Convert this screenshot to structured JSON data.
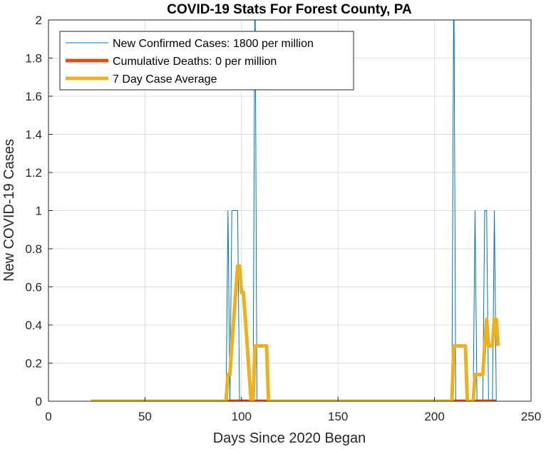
{
  "chart_data": {
    "type": "line",
    "title": "COVID-19 Stats For Forest County, PA",
    "xlabel": "Days Since 2020 Began",
    "ylabel": "New COVID-19 Cases",
    "xlim": [
      0,
      250
    ],
    "ylim": [
      0,
      2
    ],
    "x_ticks": [
      0,
      50,
      100,
      150,
      200,
      250
    ],
    "y_ticks": [
      0,
      0.2,
      0.4,
      0.6,
      0.8,
      1,
      1.2,
      1.4,
      1.6,
      1.8,
      2
    ],
    "x_tick_labels": [
      "0",
      "50",
      "100",
      "150",
      "200",
      "250"
    ],
    "y_tick_labels": [
      "0",
      "0.2",
      "0.4",
      "0.6",
      "0.8",
      "1",
      "1.2",
      "1.4",
      "1.6",
      "1.8",
      "2"
    ],
    "grid": true,
    "legend_position": "top-left",
    "series": [
      {
        "name": "New Confirmed Cases: 1800 per million",
        "color": "#0072BD",
        "style": "thin",
        "points": [
          [
            22,
            0
          ],
          [
            92,
            0
          ],
          [
            93,
            1
          ],
          [
            94,
            0
          ],
          [
            95,
            1
          ],
          [
            96,
            1
          ],
          [
            97,
            1
          ],
          [
            98,
            1
          ],
          [
            99,
            0
          ],
          [
            106,
            0
          ],
          [
            107,
            2.3
          ],
          [
            108,
            0
          ],
          [
            209,
            0
          ],
          [
            210,
            2.3
          ],
          [
            211,
            0
          ],
          [
            220,
            0
          ],
          [
            221,
            1
          ],
          [
            222,
            0
          ],
          [
            225,
            0
          ],
          [
            226,
            1
          ],
          [
            227,
            1
          ],
          [
            228,
            0
          ],
          [
            230,
            0
          ],
          [
            231,
            1
          ],
          [
            232,
            0
          ]
        ]
      },
      {
        "name": "Cumulative Deaths: 0 per million",
        "color": "#D95319",
        "style": "thick",
        "points": [
          [
            22,
            0
          ],
          [
            232,
            0
          ]
        ]
      },
      {
        "name": "7 Day Case Average",
        "color": "#EDB120",
        "style": "thick",
        "points": [
          [
            22,
            0
          ],
          [
            92,
            0
          ],
          [
            93,
            0.14
          ],
          [
            94,
            0.14
          ],
          [
            95,
            0.29
          ],
          [
            96,
            0.43
          ],
          [
            97,
            0.57
          ],
          [
            98,
            0.71
          ],
          [
            99,
            0.71
          ],
          [
            100,
            0.57
          ],
          [
            101,
            0.57
          ],
          [
            102,
            0.43
          ],
          [
            103,
            0.29
          ],
          [
            104,
            0.14
          ],
          [
            105,
            0
          ],
          [
            106,
            0
          ],
          [
            107,
            0.29
          ],
          [
            108,
            0.29
          ],
          [
            109,
            0.29
          ],
          [
            110,
            0.29
          ],
          [
            111,
            0.29
          ],
          [
            112,
            0.29
          ],
          [
            113,
            0.29
          ],
          [
            114,
            0
          ],
          [
            209,
            0
          ],
          [
            210,
            0.29
          ],
          [
            211,
            0.29
          ],
          [
            212,
            0.29
          ],
          [
            213,
            0.29
          ],
          [
            214,
            0.29
          ],
          [
            215,
            0.29
          ],
          [
            216,
            0.29
          ],
          [
            217,
            0
          ],
          [
            219,
            0
          ],
          [
            220,
            0
          ],
          [
            221,
            0.14
          ],
          [
            222,
            0.14
          ],
          [
            223,
            0.14
          ],
          [
            224,
            0.14
          ],
          [
            225,
            0.14
          ],
          [
            226,
            0.29
          ],
          [
            227,
            0.43
          ],
          [
            228,
            0.29
          ],
          [
            229,
            0.29
          ],
          [
            230,
            0.29
          ],
          [
            231,
            0.43
          ],
          [
            232,
            0.43
          ],
          [
            233,
            0.29
          ]
        ]
      }
    ]
  }
}
